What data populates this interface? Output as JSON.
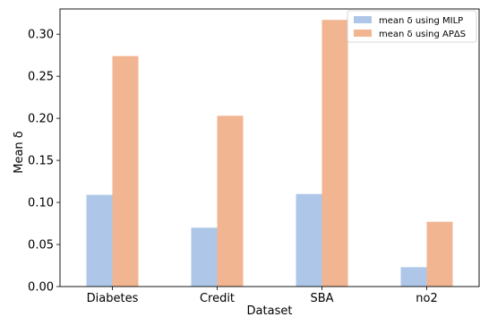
{
  "chart_data": {
    "type": "bar",
    "title": "",
    "xlabel": "Dataset",
    "ylabel": "Mean δ",
    "categories": [
      "Diabetes",
      "Credit",
      "SBA",
      "no2"
    ],
    "series": [
      {
        "name": "mean δ using MILP",
        "color": "#aec7e8",
        "values": [
          0.109,
          0.07,
          0.11,
          0.023
        ]
      },
      {
        "name": "mean δ using APΔS",
        "color": "#f2b591",
        "values": [
          0.274,
          0.203,
          0.317,
          0.077
        ]
      }
    ],
    "ylim": [
      0,
      0.33
    ],
    "yticks": [
      "0.00",
      "0.05",
      "0.10",
      "0.15",
      "0.20",
      "0.25",
      "0.30"
    ],
    "grid": false,
    "legend_position": "top-right"
  }
}
